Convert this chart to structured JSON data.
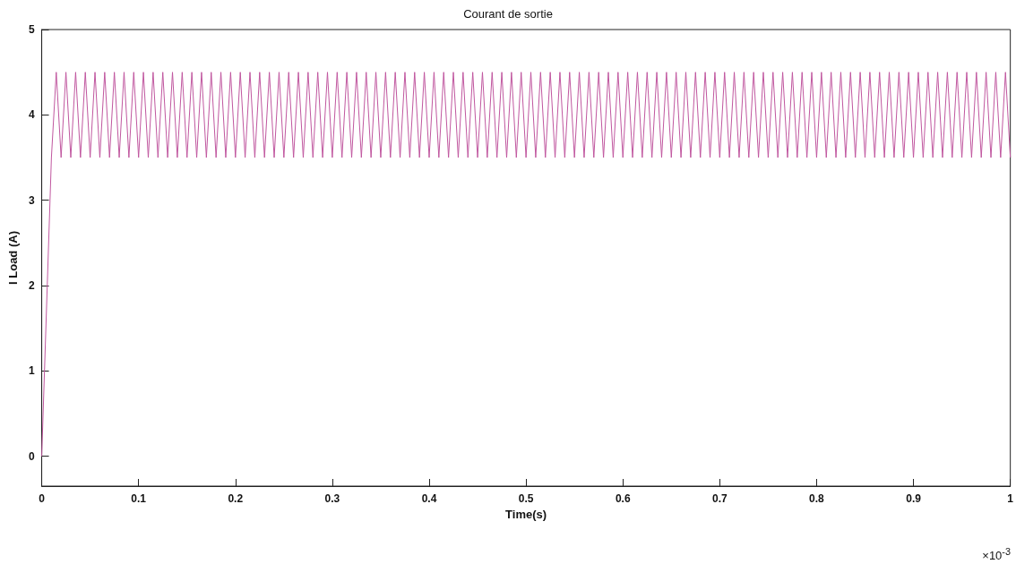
{
  "chart_data": {
    "type": "line",
    "title": "Courant de sortie",
    "xlabel": "Time(s)",
    "ylabel": "I Load (A)",
    "annotations": [
      "×10$^{-3}$"
    ],
    "xlim": [
      0,
      1
    ],
    "ylim": [
      -0.35,
      5
    ],
    "xticks": [
      0,
      0.1,
      0.2,
      0.3,
      0.4,
      0.5,
      0.6,
      0.7,
      0.8,
      0.9,
      1
    ],
    "yticks": [
      0,
      1,
      2,
      3,
      4,
      5
    ],
    "grid": false,
    "series": [
      {
        "color": "#c0579f",
        "x": [
          0,
          0.01,
          0.015,
          0.02,
          0.025,
          0.03,
          0.035,
          0.04,
          0.045,
          0.05,
          0.055,
          0.06,
          0.065,
          0.07,
          0.075,
          0.08,
          0.085,
          0.09,
          0.095,
          0.1,
          0.105,
          0.11,
          0.115,
          0.12,
          0.125,
          0.13,
          0.135,
          0.14,
          0.145,
          0.15,
          0.155,
          0.16,
          0.165,
          0.17,
          0.175,
          0.18,
          0.185,
          0.19,
          0.195,
          0.2,
          0.205,
          0.21,
          0.215,
          0.22,
          0.225,
          0.23,
          0.235,
          0.24,
          0.245,
          0.25,
          0.255,
          0.26,
          0.265,
          0.27,
          0.275,
          0.28,
          0.285,
          0.29,
          0.295,
          0.3,
          0.305,
          0.31,
          0.315,
          0.32,
          0.325,
          0.33,
          0.335,
          0.34,
          0.345,
          0.35,
          0.355,
          0.36,
          0.365,
          0.37,
          0.375,
          0.38,
          0.385,
          0.39,
          0.395,
          0.4,
          0.405,
          0.41,
          0.415,
          0.42,
          0.425,
          0.43,
          0.435,
          0.44,
          0.445,
          0.45,
          0.455,
          0.46,
          0.465,
          0.47,
          0.475,
          0.48,
          0.485,
          0.49,
          0.495,
          0.5,
          0.505,
          0.51,
          0.515,
          0.52,
          0.525,
          0.53,
          0.535,
          0.54,
          0.545,
          0.55,
          0.555,
          0.56,
          0.565,
          0.57,
          0.575,
          0.58,
          0.585,
          0.59,
          0.595,
          0.6,
          0.605,
          0.61,
          0.615,
          0.62,
          0.625,
          0.63,
          0.635,
          0.64,
          0.645,
          0.65,
          0.655,
          0.66,
          0.665,
          0.67,
          0.675,
          0.68,
          0.685,
          0.69,
          0.695,
          0.7,
          0.705,
          0.71,
          0.715,
          0.72,
          0.725,
          0.73,
          0.735,
          0.74,
          0.745,
          0.75,
          0.755,
          0.76,
          0.765,
          0.77,
          0.775,
          0.78,
          0.785,
          0.79,
          0.795,
          0.8,
          0.805,
          0.81,
          0.815,
          0.82,
          0.825,
          0.83,
          0.835,
          0.84,
          0.845,
          0.85,
          0.855,
          0.86,
          0.865,
          0.87,
          0.875,
          0.88,
          0.885,
          0.89,
          0.895,
          0.9,
          0.905,
          0.91,
          0.915,
          0.92,
          0.925,
          0.93,
          0.935,
          0.94,
          0.945,
          0.95,
          0.955,
          0.96,
          0.965,
          0.97,
          0.975,
          0.98,
          0.985,
          0.99,
          0.995,
          1
        ],
        "values": [
          0,
          3.5,
          4.5,
          3.5,
          4.5,
          3.5,
          4.5,
          3.5,
          4.5,
          3.5,
          4.5,
          3.5,
          4.5,
          3.5,
          4.5,
          3.5,
          4.5,
          3.5,
          4.5,
          3.5,
          4.5,
          3.5,
          4.5,
          3.5,
          4.5,
          3.5,
          4.5,
          3.5,
          4.5,
          3.5,
          4.5,
          3.5,
          4.5,
          3.5,
          4.5,
          3.5,
          4.5,
          3.5,
          4.5,
          3.5,
          4.5,
          3.5,
          4.5,
          3.5,
          4.5,
          3.5,
          4.5,
          3.5,
          4.5,
          3.5,
          4.5,
          3.5,
          4.5,
          3.5,
          4.5,
          3.5,
          4.5,
          3.5,
          4.5,
          3.5,
          4.5,
          3.5,
          4.5,
          3.5,
          4.5,
          3.5,
          4.5,
          3.5,
          4.5,
          3.5,
          4.5,
          3.5,
          4.5,
          3.5,
          4.5,
          3.5,
          4.5,
          3.5,
          4.5,
          3.5,
          4.5,
          3.5,
          4.5,
          3.5,
          4.5,
          3.5,
          4.5,
          3.5,
          4.5,
          3.5,
          4.5,
          3.5,
          4.5,
          3.5,
          4.5,
          3.5,
          4.5,
          3.5,
          4.5,
          3.5,
          4.5,
          3.5,
          4.5,
          3.5,
          4.5,
          3.5,
          4.5,
          3.5,
          4.5,
          3.5,
          4.5,
          3.5,
          4.5,
          3.5,
          4.5,
          3.5,
          4.5,
          3.5,
          4.5,
          3.5,
          4.5,
          3.5,
          4.5,
          3.5,
          4.5,
          3.5,
          4.5,
          3.5,
          4.5,
          3.5,
          4.5,
          3.5,
          4.5,
          3.5,
          4.5,
          3.5,
          4.5,
          3.5,
          4.5,
          3.5,
          4.5,
          3.5,
          4.5,
          3.5,
          4.5,
          3.5,
          4.5,
          3.5,
          4.5,
          3.5,
          4.5,
          3.5,
          4.5,
          3.5,
          4.5,
          3.5,
          4.5,
          3.5,
          4.5,
          3.5,
          4.5,
          3.5,
          4.5,
          3.5,
          4.5,
          3.5,
          4.5,
          3.5,
          4.5,
          3.5,
          4.5,
          3.5,
          4.5,
          3.5,
          4.5,
          3.5,
          4.5,
          3.5,
          4.5,
          3.5,
          4.5,
          3.5,
          4.5,
          3.5,
          4.5,
          3.5,
          4.5,
          3.5,
          4.5,
          3.5,
          4.5,
          3.5,
          4.5,
          3.5,
          4.5,
          3.5,
          4.5,
          3.5,
          4.5,
          3.5
        ]
      }
    ]
  }
}
